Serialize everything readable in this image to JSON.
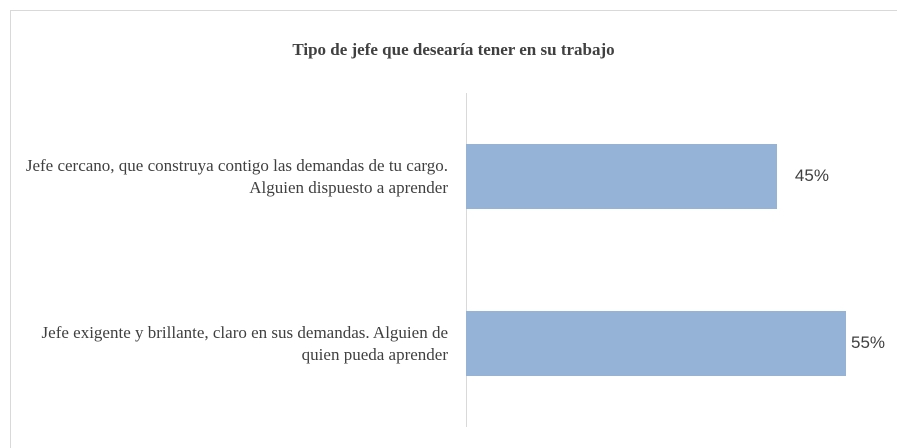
{
  "chart_data": {
    "type": "hbar",
    "title": "Tipo de jefe que desearía tener en su trabajo",
    "categories": [
      "Jefe cercano, que construya contigo las demandas de tu cargo. Alguien dispuesto a aprender",
      "Jefe exigente y brillante, claro en sus demandas. Alguien de quien pueda aprender"
    ],
    "values": [
      45,
      55
    ],
    "value_labels": [
      "45%",
      "55%"
    ],
    "color": "#95b3d7"
  }
}
